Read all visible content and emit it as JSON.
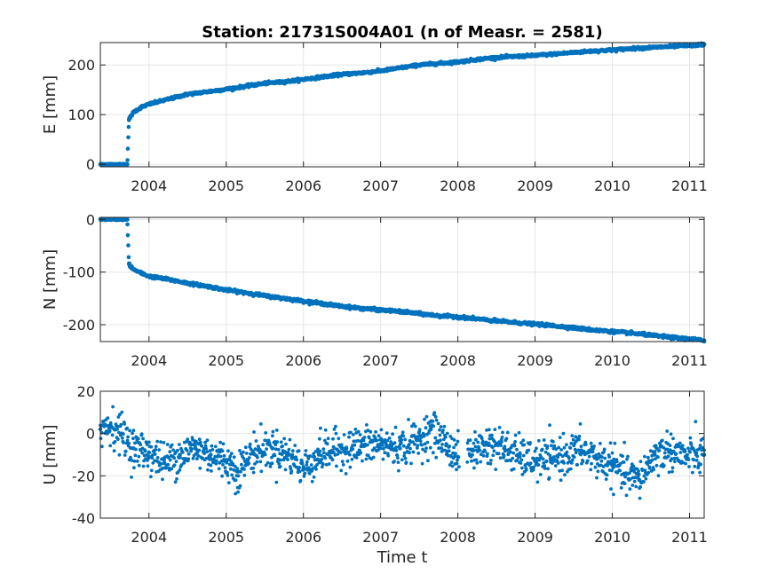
{
  "figure": {
    "title": "Station: 21731S004A01 (n of Measr. = 2581)",
    "xlabel": "Time t"
  },
  "colors": {
    "marker": "#0072BD",
    "grid": "#e6e6e6",
    "axis": "#262626"
  },
  "chart_data": [
    {
      "type": "scatter",
      "name": "E",
      "ylabel": "E [mm]",
      "xlim": [
        2003.37,
        2011.19
      ],
      "ylim": [
        -5,
        245
      ],
      "x_ticks": [
        2004,
        2005,
        2006,
        2007,
        2008,
        2009,
        2010,
        2011
      ],
      "y_ticks": [
        0,
        100,
        200
      ],
      "grid": true,
      "series": [
        {
          "x": [
            2003.37,
            2003.5,
            2003.6,
            2003.72,
            2003.74,
            2003.8,
            2003.9,
            2004.0,
            2004.25,
            2004.5,
            2004.75,
            2005.0,
            2005.25,
            2005.5,
            2005.75,
            2006.0,
            2006.25,
            2006.5,
            2006.75,
            2007.0,
            2007.25,
            2007.5,
            2007.75,
            2008.0,
            2008.25,
            2008.5,
            2008.75,
            2009.0,
            2009.25,
            2009.5,
            2009.75,
            2010.0,
            2010.25,
            2010.5,
            2010.75,
            2011.0,
            2011.19
          ],
          "y": [
            0,
            0,
            0,
            0,
            90,
            105,
            115,
            121,
            131,
            141,
            146,
            151,
            157,
            163,
            166,
            171,
            176,
            181,
            184,
            188,
            194,
            200,
            203,
            206,
            211,
            215,
            217,
            219,
            222,
            225,
            228,
            230,
            233,
            235,
            237,
            239,
            241
          ]
        }
      ]
    },
    {
      "type": "scatter",
      "name": "N",
      "ylabel": "N [mm]",
      "xlim": [
        2003.37,
        2011.19
      ],
      "ylim": [
        -232,
        4
      ],
      "x_ticks": [
        2004,
        2005,
        2006,
        2007,
        2008,
        2009,
        2010,
        2011
      ],
      "y_ticks": [
        0,
        -100,
        -200
      ],
      "grid": true,
      "series": [
        {
          "x": [
            2003.37,
            2003.5,
            2003.6,
            2003.72,
            2003.74,
            2003.8,
            2003.9,
            2004.0,
            2004.25,
            2004.5,
            2004.75,
            2005.0,
            2005.25,
            2005.5,
            2005.75,
            2006.0,
            2006.25,
            2006.5,
            2006.75,
            2007.0,
            2007.25,
            2007.5,
            2007.75,
            2008.0,
            2008.25,
            2008.5,
            2008.75,
            2009.0,
            2009.25,
            2009.5,
            2009.75,
            2010.0,
            2010.25,
            2010.5,
            2010.75,
            2011.0,
            2011.19
          ],
          "y": [
            0,
            0,
            0,
            0,
            -85,
            -95,
            -102,
            -108,
            -114,
            -121,
            -127,
            -134,
            -139,
            -145,
            -150,
            -155,
            -160,
            -165,
            -169,
            -172,
            -175,
            -179,
            -183,
            -185,
            -189,
            -193,
            -196,
            -199,
            -202,
            -206,
            -210,
            -213,
            -216,
            -220,
            -224,
            -227,
            -230
          ]
        }
      ]
    },
    {
      "type": "scatter",
      "name": "U",
      "ylabel": "U [mm]",
      "xlim": [
        2003.37,
        2011.19
      ],
      "ylim": [
        -40,
        20
      ],
      "x_ticks": [
        2004,
        2005,
        2006,
        2007,
        2008,
        2009,
        2010,
        2011
      ],
      "y_ticks": [
        20,
        0,
        -20,
        -40
      ],
      "grid": true,
      "series": [
        {
          "x": [
            2003.37,
            2003.5,
            2003.65,
            2003.8,
            2004.0,
            2004.2,
            2004.4,
            2004.6,
            2004.8,
            2005.0,
            2005.15,
            2005.35,
            2005.6,
            2005.85,
            2006.0,
            2006.2,
            2006.5,
            2006.75,
            2007.0,
            2007.25,
            2007.5,
            2007.65,
            2007.85,
            2008.0,
            2008.2,
            2008.4,
            2008.6,
            2008.8,
            2009.0,
            2009.2,
            2009.4,
            2009.6,
            2009.8,
            2010.0,
            2010.15,
            2010.35,
            2010.55,
            2010.75,
            2010.95,
            2011.19
          ],
          "y": [
            2,
            4,
            0,
            -7,
            -9,
            -14,
            -10,
            -7,
            -10,
            -13,
            -18,
            -9,
            -7,
            -11,
            -17,
            -10,
            -7,
            -6,
            -5,
            -7,
            -3,
            2,
            -5,
            -11,
            -8,
            -5,
            -7,
            -11,
            -13,
            -12,
            -10,
            -8,
            -12,
            -15,
            -19,
            -22,
            -10,
            -8,
            -11,
            -10
          ]
        }
      ]
    }
  ]
}
